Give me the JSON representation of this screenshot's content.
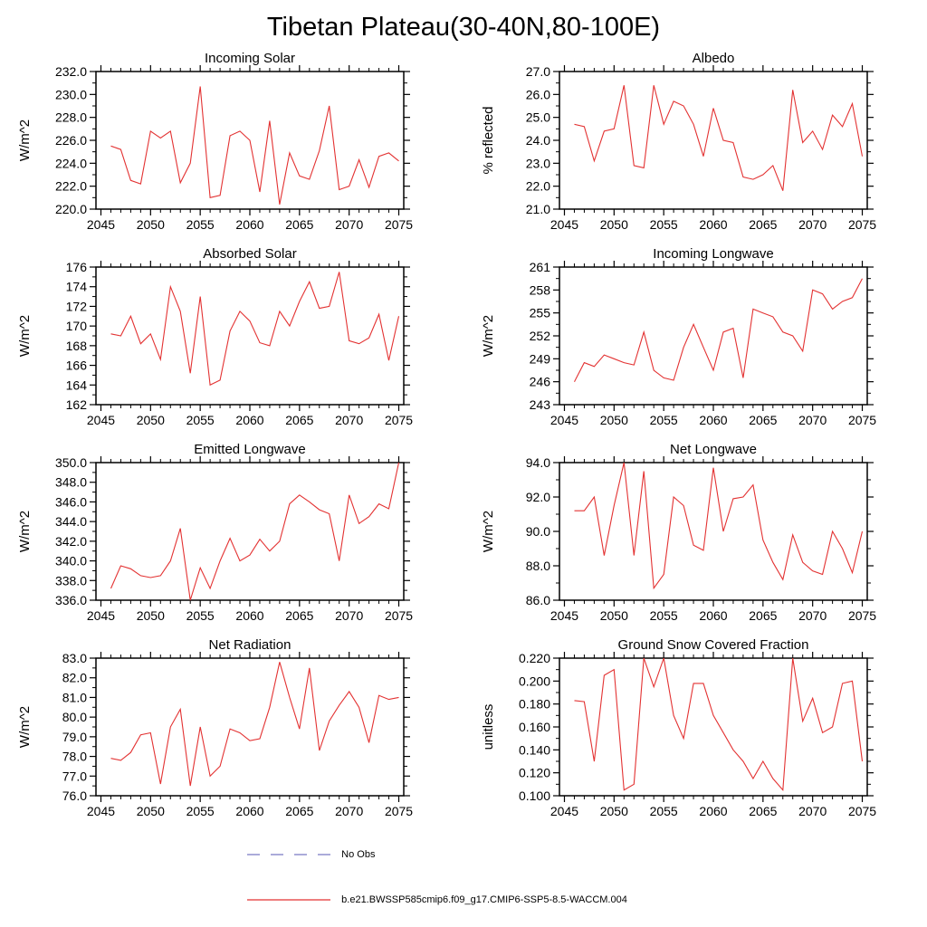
{
  "title": "Tibetan Plateau(30-40N,80-100E)",
  "colors": {
    "series": "#e33232",
    "no_obs": "#7979c4",
    "frame": "#000000"
  },
  "legend": {
    "items": [
      {
        "label": "No Obs",
        "style": "dashed",
        "color": "#7979c4"
      },
      {
        "label": "b.e21.BWSSP585cmip6.f09_g17.CMIP6-SSP5-8.5-WACCM.004",
        "style": "solid",
        "color": "#e33232"
      }
    ]
  },
  "chart_data": [
    {
      "type": "line",
      "title": "Incoming Solar",
      "ylabel": "W/m^2",
      "x_start": 2046,
      "x_end": 2075,
      "xlim": [
        2044.5,
        2075.5
      ],
      "ylim": [
        220.0,
        232.0
      ],
      "xticks": [
        2045,
        2050,
        2055,
        2060,
        2065,
        2070,
        2075
      ],
      "yticks": [
        220.0,
        222.0,
        224.0,
        226.0,
        228.0,
        230.0,
        232.0
      ],
      "ytick_decimals": 1,
      "values": [
        225.5,
        225.2,
        222.5,
        222.2,
        226.8,
        226.2,
        226.8,
        222.3,
        224.0,
        230.7,
        221.0,
        221.2,
        226.4,
        226.8,
        226.0,
        221.5,
        227.7,
        220.4,
        224.9,
        222.9,
        222.6,
        225.1,
        229.0,
        221.7,
        222.0,
        224.3,
        221.9,
        224.6,
        224.9,
        224.2
      ]
    },
    {
      "type": "line",
      "title": "Albedo",
      "ylabel": "% reflected",
      "x_start": 2046,
      "x_end": 2075,
      "xlim": [
        2044.5,
        2075.5
      ],
      "ylim": [
        21.0,
        27.0
      ],
      "xticks": [
        2045,
        2050,
        2055,
        2060,
        2065,
        2070,
        2075
      ],
      "yticks": [
        21.0,
        22.0,
        23.0,
        24.0,
        25.0,
        26.0,
        27.0
      ],
      "ytick_decimals": 1,
      "values": [
        24.7,
        24.6,
        23.1,
        24.4,
        24.5,
        26.4,
        22.9,
        22.8,
        26.4,
        24.7,
        25.7,
        25.5,
        24.7,
        23.3,
        25.4,
        24.0,
        23.9,
        22.4,
        22.3,
        22.5,
        22.9,
        21.8,
        26.2,
        23.9,
        24.4,
        23.6,
        25.1,
        24.6,
        25.6,
        23.3
      ]
    },
    {
      "type": "line",
      "title": "Absorbed Solar",
      "ylabel": "W/m^2",
      "x_start": 2046,
      "x_end": 2075,
      "xlim": [
        2044.5,
        2075.5
      ],
      "ylim": [
        162,
        176
      ],
      "xticks": [
        2045,
        2050,
        2055,
        2060,
        2065,
        2070,
        2075
      ],
      "yticks": [
        162,
        164,
        166,
        168,
        170,
        172,
        174,
        176
      ],
      "ytick_decimals": 0,
      "values": [
        169.2,
        169.0,
        171.0,
        168.2,
        169.2,
        166.6,
        174.0,
        171.5,
        165.2,
        173.0,
        164.0,
        164.5,
        169.5,
        171.5,
        170.5,
        168.3,
        168.0,
        171.5,
        170.0,
        172.5,
        174.5,
        171.8,
        172.0,
        175.5,
        168.5,
        168.2,
        168.8,
        171.2,
        166.5,
        171.0
      ]
    },
    {
      "type": "line",
      "title": "Incoming Longwave",
      "ylabel": "W/m^2",
      "x_start": 2046,
      "x_end": 2075,
      "xlim": [
        2044.5,
        2075.5
      ],
      "ylim": [
        243,
        261
      ],
      "xticks": [
        2045,
        2050,
        2055,
        2060,
        2065,
        2070,
        2075
      ],
      "yticks": [
        243,
        246,
        249,
        252,
        255,
        258,
        261
      ],
      "ytick_decimals": 0,
      "values": [
        246.0,
        248.5,
        248.0,
        249.5,
        249.0,
        248.5,
        248.2,
        252.5,
        247.5,
        246.5,
        246.2,
        250.5,
        253.5,
        250.5,
        247.5,
        252.5,
        253.0,
        246.5,
        255.5,
        255.0,
        254.5,
        252.5,
        252.0,
        250.0,
        258.0,
        257.5,
        255.5,
        256.5,
        257.0,
        259.5
      ]
    },
    {
      "type": "line",
      "title": "Emitted Longwave",
      "ylabel": "W/m^2",
      "x_start": 2046,
      "x_end": 2075,
      "xlim": [
        2044.5,
        2075.5
      ],
      "ylim": [
        336.0,
        350.0
      ],
      "xticks": [
        2045,
        2050,
        2055,
        2060,
        2065,
        2070,
        2075
      ],
      "yticks": [
        336.0,
        338.0,
        340.0,
        342.0,
        344.0,
        346.0,
        348.0,
        350.0
      ],
      "ytick_decimals": 1,
      "values": [
        337.2,
        339.5,
        339.2,
        338.5,
        338.3,
        338.5,
        340.0,
        343.3,
        336.0,
        339.3,
        337.2,
        340.0,
        342.3,
        340.0,
        340.6,
        342.2,
        341.0,
        342.0,
        345.8,
        346.7,
        346.0,
        345.2,
        344.8,
        340.0,
        346.7,
        343.8,
        344.5,
        345.8,
        345.3,
        350.0
      ]
    },
    {
      "type": "line",
      "title": "Net Longwave",
      "ylabel": "W/m^2",
      "x_start": 2046,
      "x_end": 2075,
      "xlim": [
        2044.5,
        2075.5
      ],
      "ylim": [
        86.0,
        94.0
      ],
      "xticks": [
        2045,
        2050,
        2055,
        2060,
        2065,
        2070,
        2075
      ],
      "yticks": [
        86.0,
        88.0,
        90.0,
        92.0,
        94.0
      ],
      "ytick_decimals": 1,
      "values": [
        91.2,
        91.2,
        92.0,
        88.6,
        91.5,
        94.0,
        88.6,
        93.5,
        86.7,
        87.5,
        92.0,
        91.5,
        89.2,
        88.9,
        93.7,
        90.0,
        91.9,
        92.0,
        92.7,
        89.5,
        88.2,
        87.2,
        89.8,
        88.2,
        87.7,
        87.5,
        90.0,
        89.0,
        87.6,
        90.0
      ]
    },
    {
      "type": "line",
      "title": "Net Radiation",
      "ylabel": "W/m^2",
      "x_start": 2046,
      "x_end": 2075,
      "xlim": [
        2044.5,
        2075.5
      ],
      "ylim": [
        76.0,
        83.0
      ],
      "xticks": [
        2045,
        2050,
        2055,
        2060,
        2065,
        2070,
        2075
      ],
      "yticks": [
        76.0,
        77.0,
        78.0,
        79.0,
        80.0,
        81.0,
        82.0,
        83.0
      ],
      "ytick_decimals": 1,
      "values": [
        77.9,
        77.8,
        78.2,
        79.1,
        79.2,
        76.6,
        79.5,
        80.4,
        76.5,
        79.5,
        77.0,
        77.5,
        79.4,
        79.2,
        78.8,
        78.9,
        80.5,
        82.8,
        81.0,
        79.4,
        82.5,
        78.3,
        79.8,
        80.6,
        81.3,
        80.5,
        78.7,
        81.1,
        80.9,
        81.0
      ]
    },
    {
      "type": "line",
      "title": "Ground Snow Covered Fraction",
      "ylabel": "unitless",
      "x_start": 2046,
      "x_end": 2075,
      "xlim": [
        2044.5,
        2075.5
      ],
      "ylim": [
        0.1,
        0.22
      ],
      "xticks": [
        2045,
        2050,
        2055,
        2060,
        2065,
        2070,
        2075
      ],
      "yticks": [
        0.1,
        0.12,
        0.14,
        0.16,
        0.18,
        0.2,
        0.22
      ],
      "ytick_decimals": 3,
      "values": [
        0.183,
        0.182,
        0.13,
        0.205,
        0.21,
        0.105,
        0.11,
        0.22,
        0.195,
        0.22,
        0.17,
        0.15,
        0.198,
        0.198,
        0.17,
        0.155,
        0.14,
        0.13,
        0.115,
        0.13,
        0.115,
        0.105,
        0.22,
        0.165,
        0.185,
        0.155,
        0.16,
        0.198,
        0.2,
        0.13
      ]
    }
  ]
}
